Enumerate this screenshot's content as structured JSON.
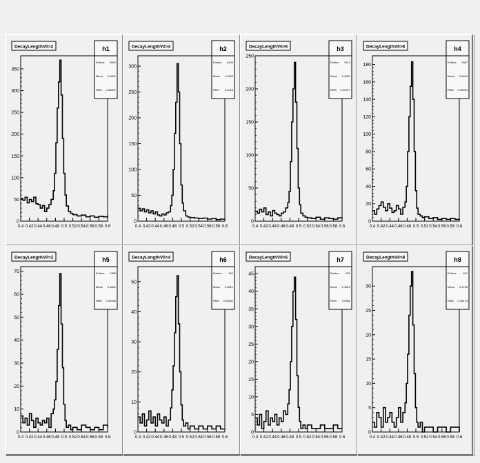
{
  "chart_data": [
    {
      "type": "histogram",
      "name": "h1",
      "title": "DecayLengthV0>2",
      "stats": {
        "entries_label": "Entries",
        "entries": "9662",
        "mean_label": "Mean",
        "mean": "0.4821",
        "rms_label": "RMS",
        "rms": "0.03697"
      },
      "xlim": [
        0.4,
        0.6
      ],
      "ylim": [
        0,
        380
      ],
      "xticks": [
        "0.4",
        "0.42",
        "0.44",
        "0.46",
        "0.48",
        "0.5",
        "0.52",
        "0.54",
        "0.56",
        "0.58",
        "0.6"
      ],
      "yticks": [
        0,
        50,
        100,
        150,
        200,
        250,
        300,
        350
      ],
      "x": [
        0.4,
        0.405,
        0.41,
        0.415,
        0.42,
        0.425,
        0.43,
        0.435,
        0.44,
        0.445,
        0.45,
        0.455,
        0.46,
        0.465,
        0.47,
        0.475,
        0.478,
        0.481,
        0.484,
        0.487,
        0.49,
        0.493,
        0.496,
        0.499,
        0.502,
        0.505,
        0.51,
        0.515,
        0.52,
        0.53,
        0.54,
        0.55,
        0.56,
        0.57,
        0.58,
        0.59,
        0.6
      ],
      "values": [
        52,
        48,
        55,
        42,
        50,
        45,
        55,
        40,
        38,
        30,
        36,
        22,
        30,
        38,
        50,
        70,
        110,
        180,
        260,
        320,
        370,
        290,
        190,
        110,
        60,
        35,
        22,
        18,
        15,
        12,
        14,
        10,
        12,
        9,
        11,
        10,
        13
      ]
    },
    {
      "type": "histogram",
      "name": "h2",
      "title": "DecayLengthV0>4",
      "stats": {
        "entries_label": "Entries",
        "entries": "6434",
        "mean_label": "Mean",
        "mean": "0.4833",
        "rms_label": "RMS",
        "rms": "0.0318"
      },
      "xlim": [
        0.4,
        0.6
      ],
      "ylim": [
        0,
        320
      ],
      "xticks": [
        "0.4",
        "0.42",
        "0.44",
        "0.46",
        "0.48",
        "0.5",
        "0.52",
        "0.54",
        "0.56",
        "0.58",
        "0.6"
      ],
      "yticks": [
        0,
        50,
        100,
        150,
        200,
        250,
        300
      ],
      "x": [
        0.4,
        0.405,
        0.41,
        0.415,
        0.42,
        0.425,
        0.43,
        0.435,
        0.44,
        0.445,
        0.45,
        0.455,
        0.46,
        0.465,
        0.47,
        0.475,
        0.478,
        0.481,
        0.484,
        0.487,
        0.49,
        0.493,
        0.496,
        0.499,
        0.502,
        0.505,
        0.51,
        0.515,
        0.52,
        0.53,
        0.54,
        0.55,
        0.56,
        0.57,
        0.58,
        0.59,
        0.6
      ],
      "values": [
        25,
        20,
        24,
        18,
        22,
        16,
        20,
        14,
        18,
        12,
        10,
        14,
        12,
        16,
        18,
        30,
        50,
        100,
        170,
        230,
        305,
        250,
        150,
        70,
        35,
        20,
        10,
        8,
        7,
        6,
        5,
        6,
        4,
        5,
        3,
        4,
        5
      ]
    },
    {
      "type": "histogram",
      "name": "h3",
      "title": "DecayLengthV0>6",
      "stats": {
        "entries_label": "Entries",
        "entries": "3413",
        "mean_label": "Mean",
        "mean": "0.4831",
        "rms_label": "RMS",
        "rms": "0.02971"
      },
      "xlim": [
        0.4,
        0.6
      ],
      "ylim": [
        0,
        250
      ],
      "xticks": [
        "0.4",
        "0.42",
        "0.44",
        "0.46",
        "0.48",
        "0.5",
        "0.52",
        "0.54",
        "0.56",
        "0.58",
        "0.6"
      ],
      "yticks": [
        0,
        50,
        100,
        150,
        200,
        250
      ],
      "x": [
        0.4,
        0.405,
        0.41,
        0.415,
        0.42,
        0.425,
        0.43,
        0.435,
        0.44,
        0.445,
        0.45,
        0.455,
        0.46,
        0.465,
        0.47,
        0.475,
        0.478,
        0.481,
        0.484,
        0.487,
        0.49,
        0.493,
        0.496,
        0.499,
        0.502,
        0.505,
        0.51,
        0.515,
        0.52,
        0.53,
        0.54,
        0.55,
        0.56,
        0.57,
        0.58,
        0.59,
        0.6
      ],
      "values": [
        15,
        12,
        18,
        14,
        20,
        10,
        14,
        8,
        16,
        12,
        10,
        8,
        12,
        14,
        20,
        28,
        45,
        90,
        150,
        200,
        240,
        180,
        110,
        50,
        25,
        12,
        8,
        6,
        5,
        4,
        6,
        3,
        5,
        4,
        3,
        5,
        4
      ]
    },
    {
      "type": "histogram",
      "name": "h4",
      "title": "DecayLengthV0>8",
      "stats": {
        "entries_label": "Entries",
        "entries": "2667",
        "mean_label": "Mean",
        "mean": "0.4814",
        "rms_label": "RMS",
        "rms": "0.03024"
      },
      "xlim": [
        0.4,
        0.6
      ],
      "ylim": [
        0,
        190
      ],
      "xticks": [
        "0.4",
        "0.42",
        "0.44",
        "0.46",
        "0.48",
        "0.5",
        "0.52",
        "0.54",
        "0.56",
        "0.58",
        "0.6"
      ],
      "yticks": [
        0,
        20,
        40,
        60,
        80,
        100,
        120,
        140,
        160,
        180
      ],
      "x": [
        0.4,
        0.405,
        0.41,
        0.415,
        0.42,
        0.425,
        0.43,
        0.435,
        0.44,
        0.445,
        0.45,
        0.455,
        0.46,
        0.465,
        0.47,
        0.475,
        0.478,
        0.481,
        0.484,
        0.487,
        0.49,
        0.493,
        0.496,
        0.499,
        0.502,
        0.505,
        0.51,
        0.515,
        0.52,
        0.53,
        0.54,
        0.55,
        0.56,
        0.57,
        0.58,
        0.59,
        0.6
      ],
      "values": [
        12,
        8,
        14,
        18,
        22,
        16,
        12,
        20,
        15,
        10,
        12,
        18,
        14,
        8,
        16,
        22,
        40,
        80,
        120,
        155,
        183,
        140,
        80,
        35,
        15,
        8,
        6,
        4,
        5,
        3,
        4,
        2,
        3,
        2,
        3,
        2,
        3
      ]
    },
    {
      "type": "histogram",
      "name": "h5",
      "title": "DecayLengthV0>2",
      "stats": {
        "entries_label": "Entries",
        "entries": "1356",
        "mean_label": "Mean",
        "mean": "0.4821",
        "rms_label": "RMS",
        "rms": "0.03265"
      },
      "xlim": [
        0.4,
        0.6
      ],
      "ylim": [
        0,
        72
      ],
      "xticks": [
        "0.4",
        "0.42",
        "0.44",
        "0.46",
        "0.48",
        "0.5",
        "0.52",
        "0.54",
        "0.56",
        "0.58",
        "0.6"
      ],
      "yticks": [
        0,
        10,
        20,
        30,
        40,
        50,
        60,
        70
      ],
      "x": [
        0.4,
        0.405,
        0.41,
        0.415,
        0.42,
        0.425,
        0.43,
        0.435,
        0.44,
        0.445,
        0.45,
        0.455,
        0.46,
        0.465,
        0.47,
        0.475,
        0.478,
        0.481,
        0.484,
        0.487,
        0.49,
        0.493,
        0.496,
        0.499,
        0.502,
        0.505,
        0.51,
        0.515,
        0.52,
        0.53,
        0.54,
        0.55,
        0.56,
        0.57,
        0.58,
        0.59,
        0.6
      ],
      "values": [
        7,
        4,
        6,
        3,
        8,
        5,
        2,
        6,
        4,
        3,
        5,
        4,
        6,
        2,
        8,
        10,
        14,
        22,
        36,
        55,
        69,
        47,
        28,
        12,
        5,
        2,
        3,
        1,
        2,
        1,
        3,
        2,
        1,
        2,
        1,
        3,
        2
      ]
    },
    {
      "type": "histogram",
      "name": "h6",
      "title": "DecayLengthV0>4",
      "stats": {
        "entries_label": "Entries",
        "entries": "904",
        "mean_label": "Mean",
        "mean": "0.4821",
        "rms_label": "RMS",
        "rms": "0.03062"
      },
      "xlim": [
        0.4,
        0.6
      ],
      "ylim": [
        0,
        55
      ],
      "xticks": [
        "0.4",
        "0.42",
        "0.44",
        "0.46",
        "0.48",
        "0.5",
        "0.52",
        "0.54",
        "0.56",
        "0.58",
        "0.6"
      ],
      "yticks": [
        0,
        10,
        20,
        30,
        40,
        50
      ],
      "x": [
        0.4,
        0.405,
        0.41,
        0.415,
        0.42,
        0.425,
        0.43,
        0.435,
        0.44,
        0.445,
        0.45,
        0.455,
        0.46,
        0.465,
        0.47,
        0.475,
        0.478,
        0.481,
        0.484,
        0.487,
        0.49,
        0.493,
        0.496,
        0.499,
        0.502,
        0.505,
        0.51,
        0.515,
        0.52,
        0.53,
        0.54,
        0.55,
        0.56,
        0.57,
        0.58,
        0.59,
        0.6
      ],
      "values": [
        5,
        3,
        6,
        2,
        4,
        7,
        3,
        5,
        2,
        6,
        4,
        3,
        5,
        2,
        4,
        8,
        14,
        22,
        33,
        45,
        52,
        36,
        20,
        9,
        4,
        2,
        3,
        1,
        2,
        1,
        2,
        1,
        2,
        1,
        2,
        1,
        1
      ]
    },
    {
      "type": "histogram",
      "name": "h7",
      "title": "DecayLengthV0>6",
      "stats": {
        "entries_label": "Entries",
        "entries": "631",
        "mean_label": "Mean",
        "mean": "0.4819",
        "rms_label": "RMS",
        "rms": "0.0382"
      },
      "xlim": [
        0.4,
        0.6
      ],
      "ylim": [
        0,
        47
      ],
      "xticks": [
        "0.4",
        "0.42",
        "0.44",
        "0.46",
        "0.48",
        "0.5",
        "0.52",
        "0.54",
        "0.56",
        "0.58",
        "0.6"
      ],
      "yticks": [
        0,
        5,
        10,
        15,
        20,
        25,
        30,
        35,
        40,
        45
      ],
      "x": [
        0.4,
        0.405,
        0.41,
        0.415,
        0.42,
        0.425,
        0.43,
        0.435,
        0.44,
        0.445,
        0.45,
        0.455,
        0.46,
        0.465,
        0.47,
        0.475,
        0.478,
        0.481,
        0.484,
        0.487,
        0.49,
        0.493,
        0.496,
        0.499,
        0.502,
        0.505,
        0.51,
        0.515,
        0.52,
        0.53,
        0.54,
        0.55,
        0.56,
        0.57,
        0.58,
        0.59,
        0.6
      ],
      "values": [
        4,
        2,
        5,
        1,
        3,
        6,
        2,
        4,
        3,
        5,
        2,
        4,
        3,
        6,
        5,
        8,
        12,
        20,
        30,
        40,
        44,
        32,
        16,
        7,
        3,
        1,
        2,
        1,
        2,
        1,
        1,
        2,
        1,
        1,
        2,
        1,
        1
      ]
    },
    {
      "type": "histogram",
      "name": "h8",
      "title": "DecayLengthV0>8",
      "stats": {
        "entries_label": "Entries",
        "entries": "407",
        "mean_label": "Mean",
        "mean": "0.4796",
        "rms_label": "RMS",
        "rms": "0.03173"
      },
      "xlim": [
        0.4,
        0.6
      ],
      "ylim": [
        0,
        34
      ],
      "xticks": [
        "0.4",
        "0.42",
        "0.44",
        "0.46",
        "0.48",
        "0.5",
        "0.52",
        "0.54",
        "0.56",
        "0.58",
        "0.6"
      ],
      "yticks": [
        0,
        5,
        10,
        15,
        20,
        25,
        30
      ],
      "x": [
        0.4,
        0.405,
        0.41,
        0.415,
        0.42,
        0.425,
        0.43,
        0.435,
        0.44,
        0.445,
        0.45,
        0.455,
        0.46,
        0.465,
        0.47,
        0.475,
        0.478,
        0.481,
        0.484,
        0.487,
        0.49,
        0.493,
        0.496,
        0.499,
        0.502,
        0.505,
        0.51,
        0.515,
        0.52,
        0.53,
        0.54,
        0.55,
        0.56,
        0.57,
        0.58,
        0.59,
        0.6
      ],
      "values": [
        2,
        1,
        4,
        3,
        1,
        5,
        2,
        3,
        4,
        2,
        1,
        3,
        5,
        2,
        4,
        6,
        10,
        16,
        24,
        30,
        33,
        22,
        12,
        5,
        2,
        1,
        2,
        0,
        1,
        1,
        0,
        1,
        1,
        0,
        1,
        1,
        0
      ]
    }
  ],
  "colors": {
    "background": "#f0f0f0",
    "pad": "#f0f0f0",
    "line": "#000000",
    "frame": "#000000"
  }
}
